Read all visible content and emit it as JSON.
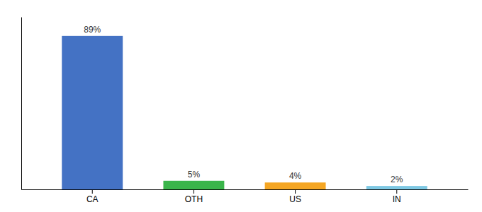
{
  "chart_data": {
    "type": "bar",
    "categories": [
      "CA",
      "OTH",
      "US",
      "IN"
    ],
    "values": [
      89,
      5,
      4,
      2
    ],
    "value_labels": [
      "89%",
      "5%",
      "4%",
      "2%"
    ],
    "colors": [
      "#4472c4",
      "#3ab54a",
      "#f5a623",
      "#7ec8e3"
    ],
    "ylim": [
      0,
      100
    ],
    "yticks": [],
    "grid": false,
    "data_labels": true,
    "tick_labels": "x"
  }
}
